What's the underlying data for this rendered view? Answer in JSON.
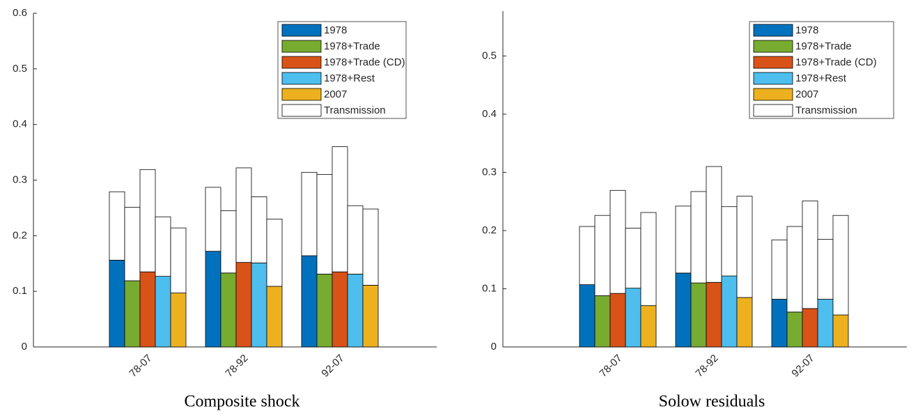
{
  "chart_data": [
    {
      "type": "stacked-grouped-bar",
      "title": "Composite shock",
      "categories": [
        "78-07",
        "78-92",
        "92-07"
      ],
      "ylim": [
        0,
        0.6
      ],
      "yticks": [
        0,
        0.1,
        0.2,
        0.3,
        0.4,
        0.5,
        0.6
      ],
      "legend": "upper right",
      "series": [
        {
          "name": "1978",
          "color": "#0072bd",
          "values": [
            0.156,
            0.172,
            0.164
          ]
        },
        {
          "name": "1978+Trade",
          "color": "#77ac30",
          "values": [
            0.119,
            0.133,
            0.131
          ]
        },
        {
          "name": "1978+Trade (CD)",
          "color": "#d95319",
          "values": [
            0.135,
            0.152,
            0.135
          ]
        },
        {
          "name": "1978+Rest",
          "color": "#4dbeee",
          "values": [
            0.127,
            0.151,
            0.131
          ]
        },
        {
          "name": "2007",
          "color": "#edb120",
          "values": [
            0.097,
            0.109,
            0.111
          ]
        },
        {
          "name": "Transmission",
          "color": "#ffffff",
          "values": [
            [
              0.123,
              0.132,
              0.184,
              0.107,
              0.117
            ],
            [
              0.115,
              0.112,
              0.17,
              0.119,
              0.121
            ],
            [
              0.15,
              0.179,
              0.225,
              0.123,
              0.137
            ]
          ]
        }
      ]
    },
    {
      "type": "stacked-grouped-bar",
      "title": "Solow residuals",
      "categories": [
        "78-07",
        "78-92",
        "92-07"
      ],
      "ylim": [
        0,
        0.577
      ],
      "yticks": [
        0,
        0.1,
        0.2,
        0.3,
        0.4,
        0.5
      ],
      "legend": "upper right",
      "series": [
        {
          "name": "1978",
          "color": "#0072bd",
          "values": [
            0.107,
            0.127,
            0.082
          ]
        },
        {
          "name": "1978+Trade",
          "color": "#77ac30",
          "values": [
            0.088,
            0.11,
            0.06
          ]
        },
        {
          "name": "1978+Trade (CD)",
          "color": "#d95319",
          "values": [
            0.092,
            0.111,
            0.066
          ]
        },
        {
          "name": "1978+Rest",
          "color": "#4dbeee",
          "values": [
            0.101,
            0.122,
            0.082
          ]
        },
        {
          "name": "2007",
          "color": "#edb120",
          "values": [
            0.071,
            0.085,
            0.055
          ]
        },
        {
          "name": "Transmission",
          "color": "#ffffff",
          "values": [
            [
              0.1,
              0.138,
              0.177,
              0.103,
              0.16
            ],
            [
              0.115,
              0.157,
              0.199,
              0.119,
              0.174
            ],
            [
              0.102,
              0.147,
              0.185,
              0.103,
              0.171
            ]
          ]
        }
      ]
    }
  ]
}
